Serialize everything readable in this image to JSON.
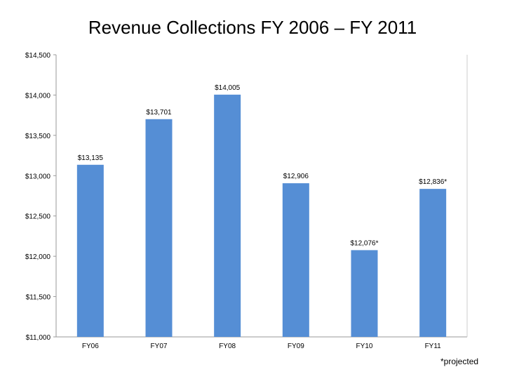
{
  "chart_data": {
    "type": "bar",
    "title": "Revenue Collections FY 2006 – FY 2011",
    "categories": [
      "FY06",
      "FY07",
      "FY08",
      "FY09",
      "FY10",
      "FY11"
    ],
    "values": [
      13135,
      13701,
      14005,
      12906,
      12076,
      12836
    ],
    "data_labels": [
      "$13,135",
      "$13,701",
      "$14,005",
      "$12,906",
      "$12,076*",
      "$12,836*"
    ],
    "ylim": [
      11000,
      14500
    ],
    "yticks": [
      11000,
      11500,
      12000,
      12500,
      13000,
      13500,
      14000,
      14500
    ],
    "ytick_labels": [
      "$11,000",
      "$11,500",
      "$12,000",
      "$12,500",
      "$13,000",
      "$13,500",
      "$14,000",
      "$14,500"
    ],
    "xlabel": "",
    "ylabel": "",
    "grid": false,
    "bar_color": "#558ed5",
    "footnote": "*projected"
  }
}
